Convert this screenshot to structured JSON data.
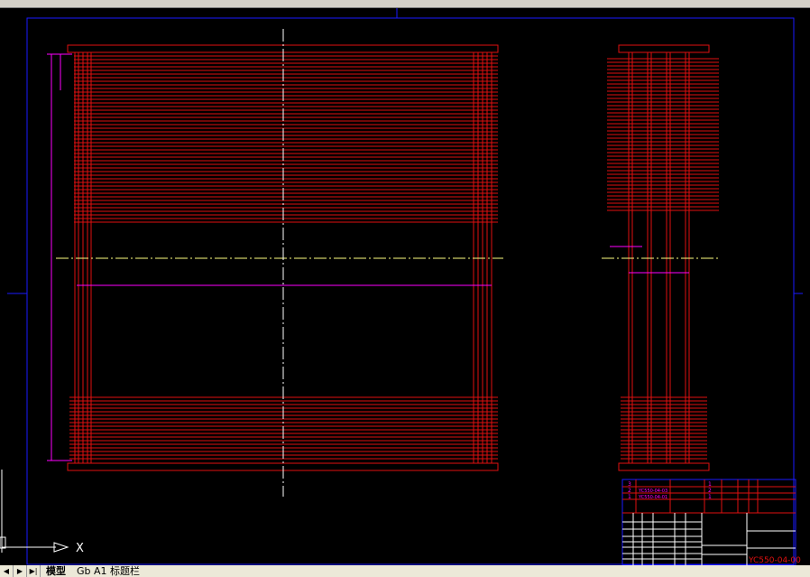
{
  "colors": {
    "background": "#000000",
    "frame": "#1a1aff",
    "geometry": "#e01010",
    "centerline": "#ffff80",
    "dimension": "#ff00ff",
    "axis": "#ffffff",
    "titleblock_text": "#ff00ff"
  },
  "titleblock": {
    "drawing_number": "YC550-04-00",
    "parts": [
      {
        "no": "3",
        "code": ""
      },
      {
        "no": "2",
        "code": "YC550-04-03"
      },
      {
        "no": "1",
        "code": "YC550-04-01"
      }
    ],
    "quantities": [
      "1",
      "2",
      "1"
    ]
  },
  "tabs": {
    "nav": [
      "◀",
      "▶",
      "▶|"
    ],
    "items": [
      "模型",
      "Gb A1 标题栏"
    ],
    "active": 0
  },
  "ucs": {
    "x_label": "X"
  }
}
